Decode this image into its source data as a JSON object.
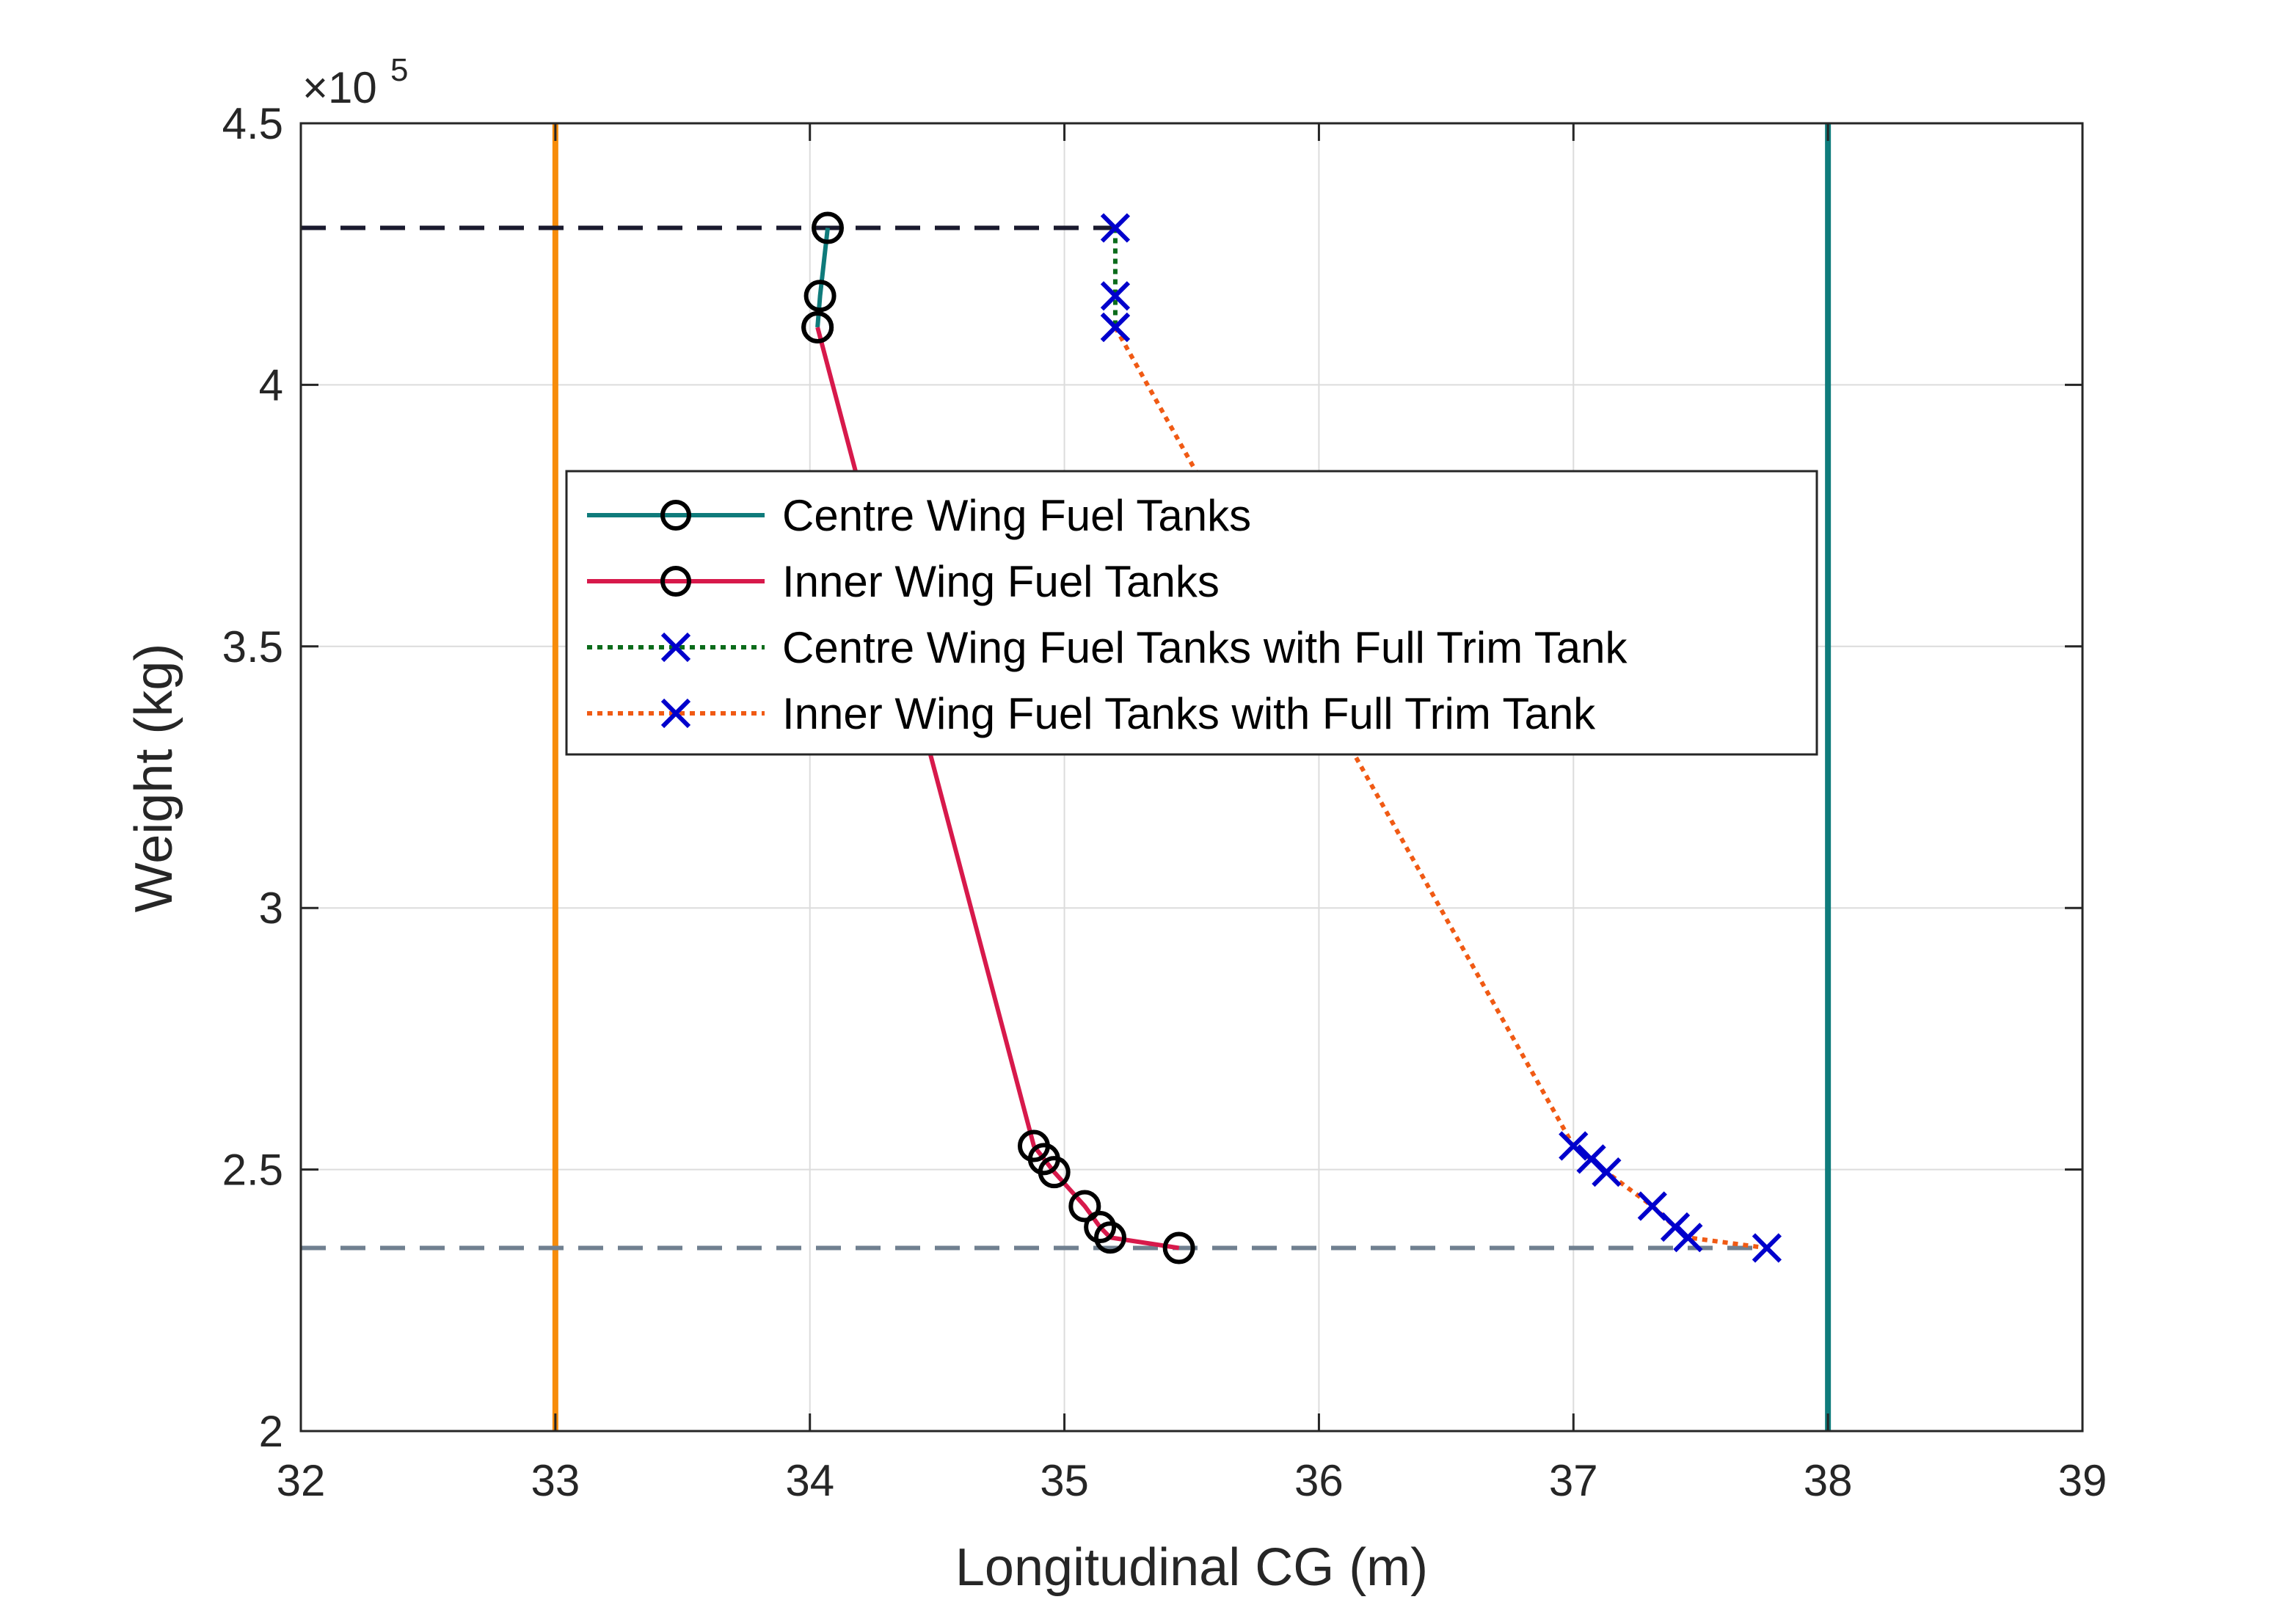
{
  "chart_data": {
    "type": "line",
    "xlabel": "Longitudinal CG (m)",
    "ylabel": "Weight (kg)",
    "xlim": [
      32,
      39
    ],
    "ylim": [
      200000,
      450000
    ],
    "x_ticks": [
      32,
      33,
      34,
      35,
      36,
      37,
      38,
      39
    ],
    "y_ticks": [
      200000,
      250000,
      300000,
      350000,
      400000,
      450000
    ],
    "x_tick_labels": [
      "32",
      "33",
      "34",
      "35",
      "36",
      "37",
      "38",
      "39"
    ],
    "y_tick_labels": [
      "2",
      "2.5",
      "3",
      "3.5",
      "4",
      "4.5"
    ],
    "y_exponent_prefix": "×10",
    "y_exponent_power": "5",
    "grid": true,
    "legend_position": "center",
    "series": [
      {
        "name": "Centre Wing Fuel Tanks",
        "color": "#0f7b7b",
        "line_style": "solid",
        "marker": "circle",
        "marker_color": "#000000",
        "x": [
          34.07,
          34.04,
          34.03
        ],
        "y": [
          430000,
          417000,
          411000
        ]
      },
      {
        "name": "Inner Wing Fuel Tanks",
        "color": "#d7194b",
        "line_style": "solid",
        "marker": "circle",
        "marker_color": "#000000",
        "x": [
          34.03,
          34.88,
          34.92,
          34.96,
          35.08,
          35.14,
          35.18,
          35.45
        ],
        "y": [
          411000,
          254500,
          252000,
          249500,
          243000,
          239000,
          237000,
          235000
        ]
      },
      {
        "name": "Centre Wing Fuel Tanks with Full Trim Tank",
        "color": "#0a6b1a",
        "line_style": "dotted",
        "marker": "x",
        "marker_color": "#0000cc",
        "x": [
          35.2,
          35.2,
          35.2
        ],
        "y": [
          430000,
          417000,
          411000
        ]
      },
      {
        "name": "Inner Wing Fuel Tanks with Full Trim Tank",
        "color": "#f05a14",
        "line_style": "dotted",
        "marker": "x",
        "marker_color": "#0000cc",
        "x": [
          35.2,
          37.0,
          37.07,
          37.13,
          37.31,
          37.4,
          37.45,
          37.76
        ],
        "y": [
          411000,
          254500,
          252000,
          249500,
          243000,
          239000,
          237000,
          235000
        ]
      }
    ],
    "reference_lines": [
      {
        "orientation": "vertical",
        "value": 33.0,
        "color": "#f78c0a",
        "style": "solid"
      },
      {
        "orientation": "vertical",
        "value": 38.0,
        "color": "#0f7b7b",
        "style": "solid"
      },
      {
        "orientation": "horizontal",
        "value": 430000,
        "x_range": [
          32,
          35.2
        ],
        "color": "#1a1a2e",
        "style": "dashed"
      },
      {
        "orientation": "horizontal",
        "value": 235000,
        "x_range": [
          32,
          37.76
        ],
        "color": "#708090",
        "style": "dashed"
      }
    ]
  }
}
